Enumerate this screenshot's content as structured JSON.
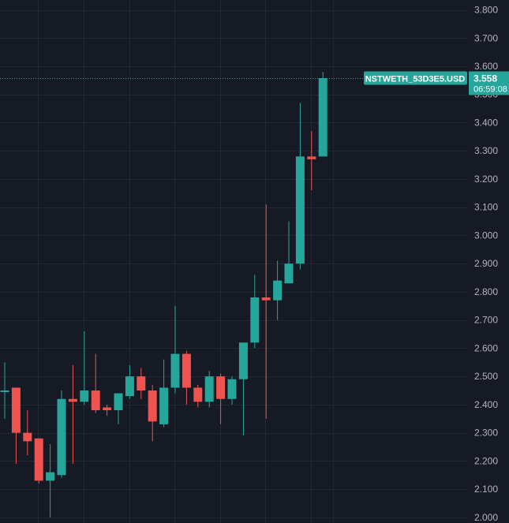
{
  "chart_data": {
    "type": "candlestick",
    "symbol_label": "NSTWETH_53D3E5.USD",
    "last_price": "3.558",
    "countdown": "06:59:08",
    "y_ticks": [
      "3.800",
      "3.700",
      "3.600",
      "3.500",
      "3.400",
      "3.300",
      "3.200",
      "3.100",
      "3.000",
      "2.900",
      "2.800",
      "2.700",
      "2.600",
      "2.500",
      "2.400",
      "2.300",
      "2.200",
      "2.100",
      "2.000"
    ],
    "ylim": [
      1.98,
      3.835
    ],
    "grid": true,
    "colors": {
      "background": "#161a25",
      "grid": "#232734",
      "up": "#26a69a",
      "down": "#ef5350",
      "axis_text": "#b2b5be",
      "label_bg": "#26a69a",
      "label_text": "#ffffff"
    },
    "candles": [
      {
        "o": 2.45,
        "h": 2.55,
        "l": 2.35,
        "c": 2.45
      },
      {
        "o": 2.46,
        "h": 2.46,
        "l": 2.19,
        "c": 2.3
      },
      {
        "o": 2.3,
        "h": 2.38,
        "l": 2.22,
        "c": 2.27
      },
      {
        "o": 2.28,
        "h": 2.28,
        "l": 2.12,
        "c": 2.13
      },
      {
        "o": 2.13,
        "h": 2.26,
        "l": 2.0,
        "c": 2.16
      },
      {
        "o": 2.15,
        "h": 2.45,
        "l": 2.14,
        "c": 2.42
      },
      {
        "o": 2.42,
        "h": 2.54,
        "l": 2.19,
        "c": 2.41
      },
      {
        "o": 2.41,
        "h": 2.66,
        "l": 2.4,
        "c": 2.45
      },
      {
        "o": 2.45,
        "h": 2.58,
        "l": 2.37,
        "c": 2.38
      },
      {
        "o": 2.39,
        "h": 2.4,
        "l": 2.36,
        "c": 2.38
      },
      {
        "o": 2.38,
        "h": 2.44,
        "l": 2.33,
        "c": 2.44
      },
      {
        "o": 2.43,
        "h": 2.54,
        "l": 2.42,
        "c": 2.5
      },
      {
        "o": 2.5,
        "h": 2.53,
        "l": 2.42,
        "c": 2.45
      },
      {
        "o": 2.45,
        "h": 2.47,
        "l": 2.27,
        "c": 2.34
      },
      {
        "o": 2.33,
        "h": 2.56,
        "l": 2.32,
        "c": 2.46
      },
      {
        "o": 2.46,
        "h": 2.75,
        "l": 2.44,
        "c": 2.58
      },
      {
        "o": 2.58,
        "h": 2.59,
        "l": 2.4,
        "c": 2.46
      },
      {
        "o": 2.46,
        "h": 2.47,
        "l": 2.39,
        "c": 2.41
      },
      {
        "o": 2.41,
        "h": 2.52,
        "l": 2.39,
        "c": 2.5
      },
      {
        "o": 2.5,
        "h": 2.51,
        "l": 2.33,
        "c": 2.42
      },
      {
        "o": 2.42,
        "h": 2.5,
        "l": 2.4,
        "c": 2.49
      },
      {
        "o": 2.49,
        "h": 2.62,
        "l": 2.29,
        "c": 2.62
      },
      {
        "o": 2.62,
        "h": 2.86,
        "l": 2.6,
        "c": 2.78
      },
      {
        "o": 2.78,
        "h": 3.11,
        "l": 2.35,
        "c": 2.77
      },
      {
        "o": 2.77,
        "h": 2.91,
        "l": 2.7,
        "c": 2.84
      },
      {
        "o": 2.83,
        "h": 3.05,
        "l": 2.83,
        "c": 2.9
      },
      {
        "o": 2.9,
        "h": 3.47,
        "l": 2.88,
        "c": 3.28
      },
      {
        "o": 3.28,
        "h": 3.37,
        "l": 3.16,
        "c": 3.27
      },
      {
        "o": 3.28,
        "h": 3.58,
        "l": 3.28,
        "c": 3.558
      }
    ]
  }
}
